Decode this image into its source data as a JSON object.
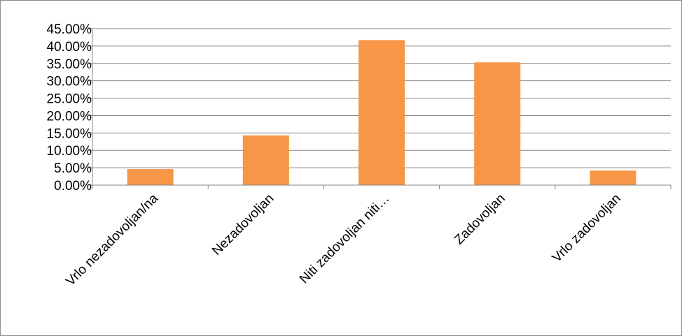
{
  "chart_data": {
    "type": "bar",
    "categories": [
      "Vrlo nezadovoljan/na",
      "Nezadovoljan",
      "Niti zadovoljan niti…",
      "Zadovoljan",
      "Vrlo zadovoljan"
    ],
    "values": [
      4.6,
      14.3,
      41.7,
      35.3,
      4.2
    ],
    "ylim": [
      0,
      45
    ],
    "ytick_step": 5,
    "ytick_labels": [
      "0.00%",
      "5.00%",
      "10.00%",
      "15.00%",
      "20.00%",
      "25.00%",
      "30.00%",
      "35.00%",
      "40.00%",
      "45.00%"
    ],
    "bar_color": "#F79646",
    "grid": true,
    "legend": "none"
  }
}
